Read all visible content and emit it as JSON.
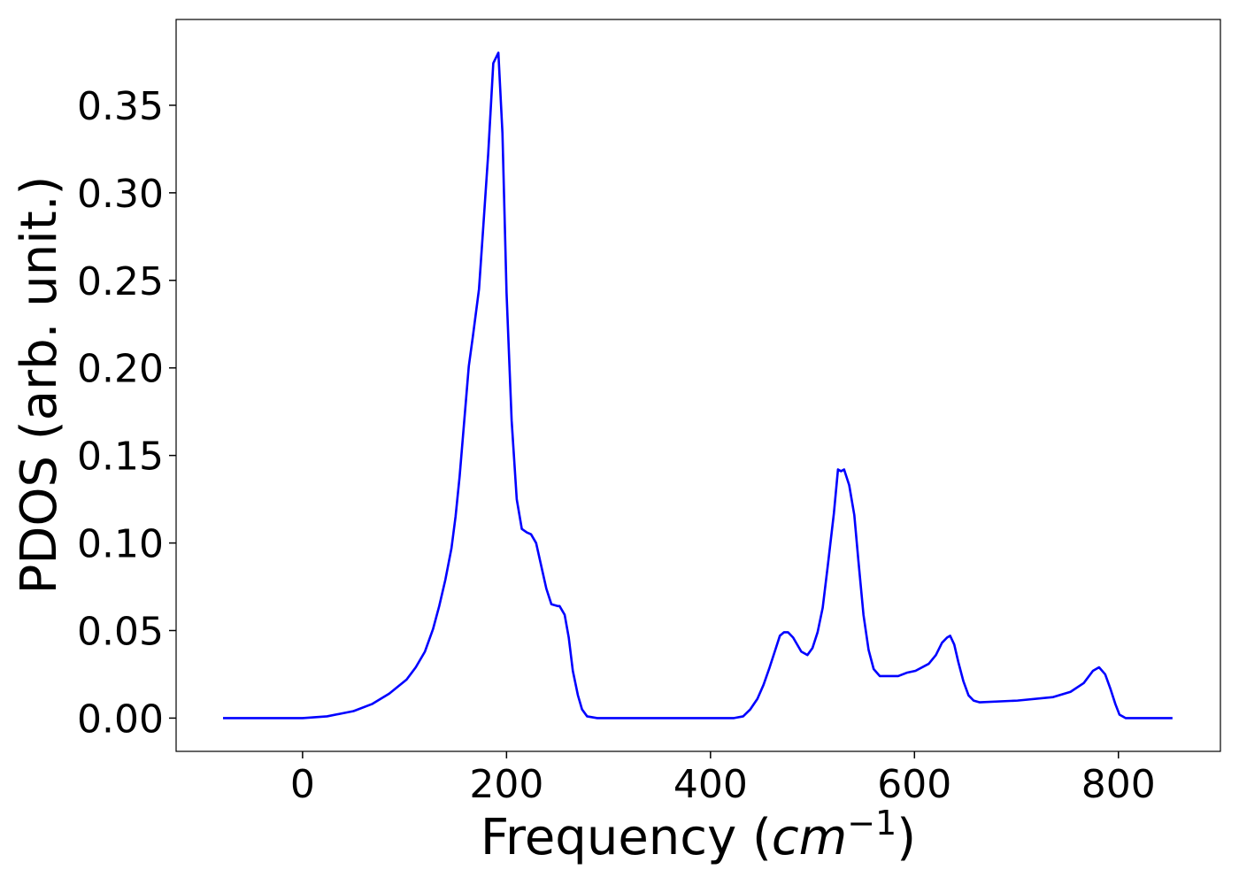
{
  "chart_data": {
    "type": "line",
    "x_label_parts": [
      "Frequency (",
      "cm",
      "−1",
      ")"
    ],
    "y_label": "PDOS (arb. unit.)",
    "x": [
      -78,
      0,
      24,
      50,
      68,
      85,
      102,
      111,
      120,
      128,
      134,
      140,
      146,
      150,
      154,
      159,
      163,
      167,
      173,
      177,
      182,
      187,
      192,
      196,
      200,
      205,
      210,
      215,
      220,
      224,
      229,
      234,
      239,
      244,
      250,
      252,
      257,
      261,
      265,
      270,
      274,
      279,
      289,
      423,
      432,
      439,
      446,
      452,
      458,
      463,
      468,
      472,
      476,
      481,
      487,
      489,
      495,
      500,
      505,
      510,
      515,
      521,
      525,
      528,
      531,
      536,
      541,
      545,
      550,
      555,
      560,
      566,
      571,
      584,
      593,
      601,
      614,
      621,
      627,
      632,
      635,
      639,
      643,
      648,
      653,
      658,
      664,
      701,
      736,
      753,
      766,
      775,
      781,
      787,
      792,
      797,
      801,
      807,
      853
    ],
    "series": [
      {
        "name": "PDOS",
        "color": "#0000ff",
        "values": [
          0,
          0,
          0.001,
          0.004,
          0.008,
          0.014,
          0.022,
          0.029,
          0.038,
          0.051,
          0.064,
          0.079,
          0.097,
          0.115,
          0.138,
          0.173,
          0.201,
          0.218,
          0.245,
          0.279,
          0.322,
          0.374,
          0.38,
          0.334,
          0.243,
          0.17,
          0.125,
          0.108,
          0.106,
          0.105,
          0.1,
          0.087,
          0.074,
          0.065,
          0.064,
          0.064,
          0.059,
          0.046,
          0.027,
          0.013,
          0.005,
          0.001,
          0,
          0,
          0.001,
          0.005,
          0.011,
          0.019,
          0.029,
          0.038,
          0.047,
          0.049,
          0.049,
          0.046,
          0.04,
          0.038,
          0.036,
          0.04,
          0.049,
          0.063,
          0.087,
          0.117,
          0.142,
          0.141,
          0.142,
          0.133,
          0.116,
          0.09,
          0.059,
          0.039,
          0.028,
          0.024,
          0.024,
          0.024,
          0.026,
          0.027,
          0.031,
          0.036,
          0.043,
          0.046,
          0.047,
          0.042,
          0.032,
          0.021,
          0.013,
          0.01,
          0.009,
          0.01,
          0.012,
          0.015,
          0.02,
          0.027,
          0.029,
          0.025,
          0.017,
          0.008,
          0.002,
          0,
          0
        ]
      }
    ],
    "xlim": [
      -124,
      900
    ],
    "ylim": [
      -0.019,
      0.399
    ],
    "xticks": [
      0,
      200,
      400,
      600,
      800
    ],
    "yticks": [
      {
        "value": 0,
        "label": "0.00"
      },
      {
        "value": 0.05,
        "label": "0.05"
      },
      {
        "value": 0.1,
        "label": "0.10"
      },
      {
        "value": 0.15,
        "label": "0.15"
      },
      {
        "value": 0.2,
        "label": "0.20"
      },
      {
        "value": 0.25,
        "label": "0.25"
      },
      {
        "value": 0.3,
        "label": "0.30"
      },
      {
        "value": 0.35,
        "label": "0.35"
      }
    ],
    "grid": false
  }
}
